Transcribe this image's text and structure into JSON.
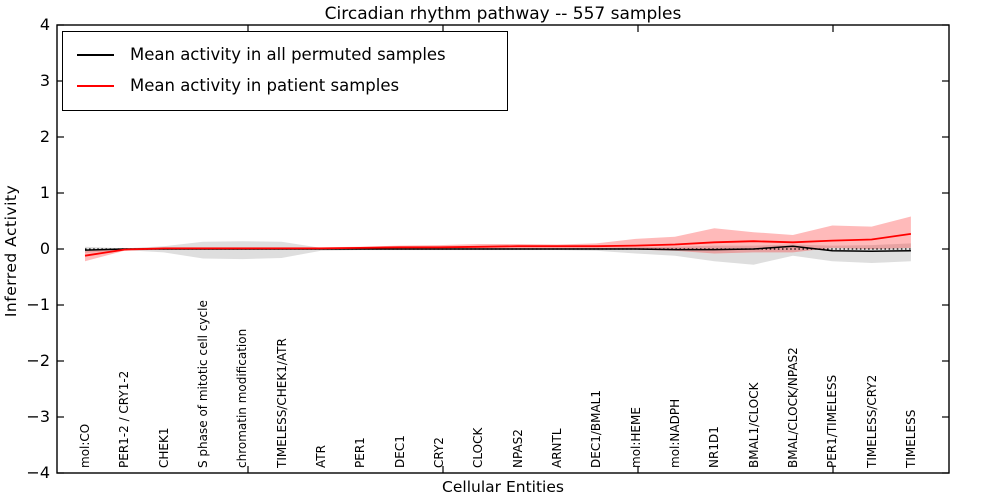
{
  "title": "Circadian rhythm pathway -- 557 samples",
  "axes": {
    "ylabel": "Inferred Activity",
    "xlabel": "Cellular Entities",
    "yticks": [
      "4",
      "3",
      "2",
      "1",
      "0",
      "−1",
      "−2",
      "−3",
      "−4"
    ]
  },
  "legend": {
    "entries": [
      "Mean activity in all permuted samples",
      "Mean activity in patient samples"
    ]
  },
  "chart_data": {
    "type": "line",
    "title": "Circadian rhythm pathway -- 557 samples",
    "xlabel": "Cellular Entities",
    "ylabel": "Inferred Activity",
    "ylim": [
      -4,
      4
    ],
    "grid": false,
    "legend_position": "upper left",
    "zero_line": "dotted black reference at y=0",
    "categories": [
      "mol:CO",
      "PER1-2 / CRY1-2",
      "CHEK1",
      "S phase of mitotic cell cycle",
      "chromatin modification",
      "TIMELESS/CHEK1/ATR",
      "ATR",
      "PER1",
      "DEC1",
      "CRY2",
      "CLOCK",
      "NPAS2",
      "ARNTL",
      "DEC1/BMAL1",
      "mol:HEME",
      "mol:NADPH",
      "NR1D1",
      "BMAL1/CLOCK",
      "BMAL/CLOCK/NPAS2",
      "PER1/TIMELESS",
      "TIMELESS/CRY2",
      "TIMELESS"
    ],
    "series": [
      {
        "name": "Mean activity in all permuted samples",
        "color": "#000000",
        "values": [
          -0.02,
          0.0,
          0.0,
          0.0,
          0.0,
          0.0,
          0.0,
          0.0,
          0.0,
          0.0,
          0.0,
          0.0,
          0.0,
          0.0,
          0.0,
          -0.01,
          -0.01,
          0.0,
          0.05,
          -0.03,
          -0.04,
          -0.03
        ]
      },
      {
        "name": "Mean activity in patient samples",
        "color": "#ff0000",
        "values": [
          -0.12,
          -0.01,
          0.01,
          0.01,
          0.01,
          0.01,
          0.01,
          0.02,
          0.03,
          0.03,
          0.04,
          0.05,
          0.05,
          0.05,
          0.06,
          0.08,
          0.12,
          0.14,
          0.12,
          0.15,
          0.17,
          0.27
        ]
      }
    ],
    "bands": [
      {
        "name": "permuted samples range",
        "color": "rgba(0,0,0,0.13)",
        "high": [
          0.04,
          0.01,
          0.05,
          0.13,
          0.14,
          0.13,
          0.02,
          0.01,
          0.01,
          0.01,
          0.01,
          0.01,
          0.01,
          0.02,
          0.03,
          0.04,
          0.06,
          0.06,
          0.08,
          0.06,
          0.07,
          0.1
        ],
        "low": [
          -0.07,
          -0.02,
          -0.06,
          -0.17,
          -0.18,
          -0.16,
          -0.03,
          -0.02,
          -0.02,
          -0.02,
          -0.02,
          -0.02,
          -0.02,
          -0.03,
          -0.08,
          -0.12,
          -0.22,
          -0.28,
          -0.12,
          -0.22,
          -0.25,
          -0.22
        ]
      },
      {
        "name": "patient samples range",
        "color": "rgba(255,0,0,0.27)",
        "high": [
          -0.03,
          0.01,
          0.03,
          0.03,
          0.03,
          0.03,
          0.03,
          0.04,
          0.06,
          0.07,
          0.09,
          0.09,
          0.08,
          0.1,
          0.18,
          0.22,
          0.37,
          0.3,
          0.25,
          0.42,
          0.4,
          0.58
        ],
        "low": [
          -0.22,
          -0.03,
          -0.01,
          -0.01,
          -0.01,
          -0.01,
          -0.01,
          -0.01,
          0.0,
          0.0,
          0.0,
          0.0,
          0.0,
          0.0,
          -0.01,
          -0.03,
          -0.08,
          -0.06,
          -0.06,
          0.02,
          0.0,
          0.02
        ]
      }
    ]
  }
}
